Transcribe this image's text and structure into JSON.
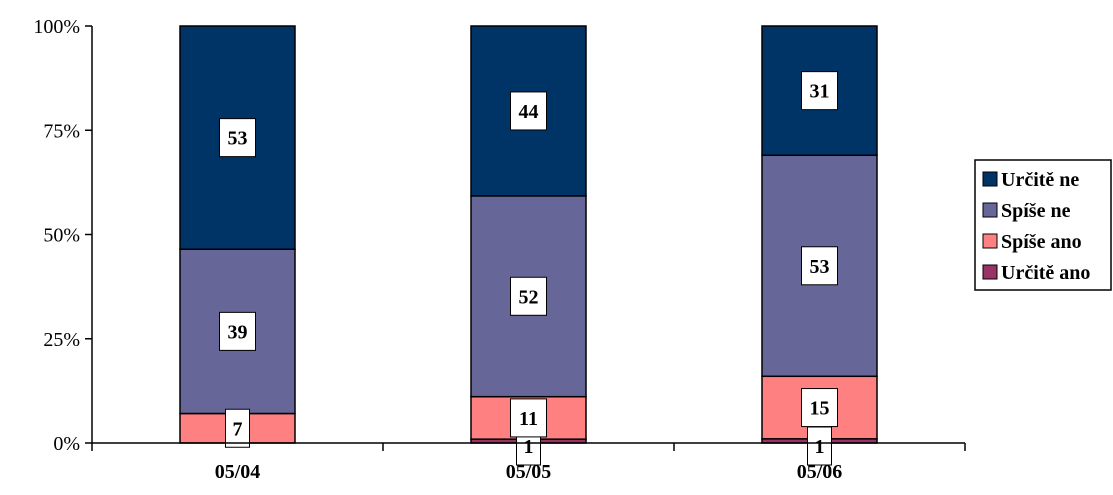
{
  "chart_data": {
    "type": "bar",
    "stacked": true,
    "percent": true,
    "categories": [
      "05/04",
      "05/05",
      "05/06"
    ],
    "series": [
      {
        "name": "Určitě ano",
        "values": [
          0,
          1,
          1
        ],
        "color": "#993366"
      },
      {
        "name": "Spíše ano",
        "values": [
          7,
          11,
          15
        ],
        "color": "#FF8080"
      },
      {
        "name": "Spíše ne",
        "values": [
          39,
          52,
          53
        ],
        "color": "#666699"
      },
      {
        "name": "Určitě ne",
        "values": [
          53,
          44,
          31
        ],
        "color": "#003366"
      }
    ],
    "y_ticks": [
      "0%",
      "25%",
      "50%",
      "75%",
      "100%"
    ],
    "ylim": [
      0,
      100
    ],
    "legend_position": "right",
    "grid": false
  }
}
